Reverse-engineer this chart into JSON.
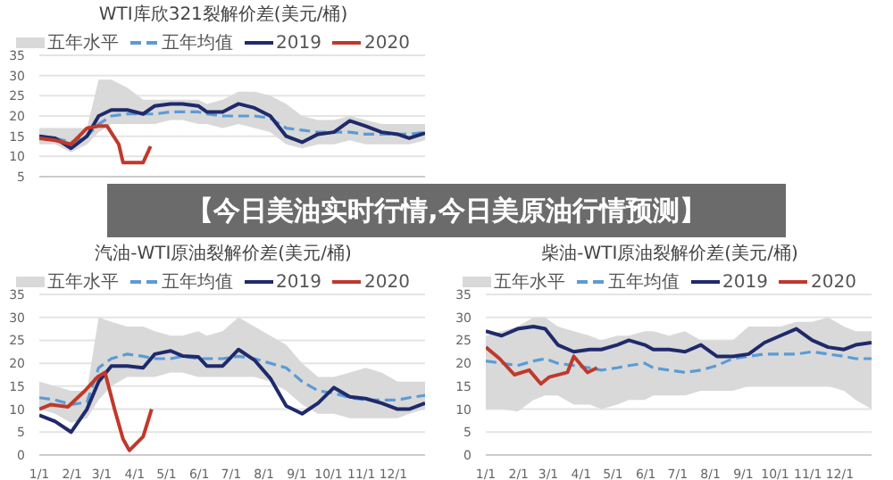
{
  "chart_data": [
    {
      "type": "line",
      "title": "WTI库欣321裂解价差(美元/桶)",
      "subtitle": "【今日美油实时行情,今日美原油行情预测】",
      "annotations": [
        "五年水平"
      ],
      "x": [
        "--01-01",
        "--01-16",
        "--01-31",
        "--02-15",
        "--02-26",
        "--03-10",
        "--03-25",
        "--04-09",
        "--04-20",
        "--05-05",
        "--05-16",
        "--05-31",
        "--06-08",
        "--06-23",
        "--07-08",
        "--07-23",
        "--08-07",
        "--08-22",
        "--09-06",
        "--09-21",
        "--10-06",
        "--10-21",
        "--11-05",
        "--11-20",
        "--12-05",
        "--12-16",
        "--12-31"
      ],
      "xlim": [
        "--01-01",
        "--12-31"
      ],
      "ylim": [
        5,
        35
      ],
      "yticks": [
        5,
        10,
        15,
        20,
        25,
        30,
        35
      ],
      "tick_labels": "y",
      "grid": "y",
      "legend": "top",
      "marker": "none",
      "series": [
        {
          "name": "五年均值",
          "color": "#5b9bd5",
          "line_style": "dashed",
          "lower": [
            13,
            13,
            11,
            13,
            16,
            18,
            18,
            18,
            18,
            19,
            19,
            18,
            18,
            17,
            18,
            17,
            16,
            13,
            12,
            13,
            13,
            14,
            13,
            13,
            13,
            13,
            14
          ],
          "upper": [
            17,
            17,
            17,
            17,
            29,
            29,
            27,
            24,
            24,
            24,
            24,
            24,
            23,
            24,
            26,
            26,
            25,
            23,
            20,
            19,
            19,
            20,
            19,
            18,
            18,
            18,
            18
          ],
          "values": [
            15,
            14.5,
            13.5,
            15,
            18,
            20,
            20.5,
            20.5,
            20.5,
            21,
            21,
            21,
            20.5,
            20,
            20,
            20,
            19.5,
            17,
            16.5,
            16,
            16,
            16,
            15.5,
            15.5,
            15.5,
            15.5,
            16
          ]
        },
        {
          "name": "2019",
          "color": "#1f2a6b",
          "values": [
            15,
            14.5,
            12,
            15,
            20,
            21.5,
            21.5,
            20.5,
            22.5,
            23,
            23,
            22.5,
            21,
            21,
            23,
            22,
            20,
            15,
            13.5,
            15.5,
            16,
            18.8,
            17.5,
            16,
            15.5,
            14.5,
            15.8
          ]
        },
        {
          "name": "2020",
          "color": "#c0392b",
          "x": [
            "--01-01",
            "--01-16",
            "--01-31",
            "--02-15",
            "--02-26",
            "--03-06",
            "--03-17",
            "--03-21",
            "--04-09",
            "--04-16"
          ],
          "values": [
            14.5,
            14,
            13,
            17,
            17.5,
            17.5,
            13,
            8.5,
            8.5,
            12.5
          ]
        }
      ]
    },
    {
      "type": "line",
      "title": "汽油-WTI原油裂解价差(美元/桶)",
      "annotations": [
        "五年水平"
      ],
      "x": [
        "--01-01",
        "--01-16",
        "--01-31",
        "--02-15",
        "--02-26",
        "--03-10",
        "--03-25",
        "--04-09",
        "--04-20",
        "--05-05",
        "--05-16",
        "--05-31",
        "--06-08",
        "--06-23",
        "--07-08",
        "--07-23",
        "--08-07",
        "--08-22",
        "--09-06",
        "--09-21",
        "--10-06",
        "--10-21",
        "--11-05",
        "--11-20",
        "--12-05",
        "--12-16",
        "--12-31"
      ],
      "xlim": [
        "--01-01",
        "--12-31"
      ],
      "xticks": [
        {
          "value": "--01-01",
          "label": "1/1"
        },
        {
          "value": "--02-01",
          "label": "2/1"
        },
        {
          "value": "--03-01",
          "label": "3/1"
        },
        {
          "value": "--04-01",
          "label": "4/1"
        },
        {
          "value": "--05-01",
          "label": "5/1"
        },
        {
          "value": "--06-01",
          "label": "6/1"
        },
        {
          "value": "--07-01",
          "label": "7/1"
        },
        {
          "value": "--08-01",
          "label": "8/1"
        },
        {
          "value": "--09-01",
          "label": "9/1"
        },
        {
          "value": "--10-01",
          "label": "10/1"
        },
        {
          "value": "--11-01",
          "label": "11/1"
        },
        {
          "value": "--12-01",
          "label": "12/1"
        }
      ],
      "ylim": [
        0,
        35
      ],
      "yticks": [
        0,
        5,
        10,
        15,
        20,
        25,
        30,
        35
      ],
      "grid": "y",
      "legend": "top",
      "marker": "none",
      "series": [
        {
          "name": "五年均值",
          "color": "#5b9bd5",
          "line_style": "dashed",
          "lower": [
            10,
            9,
            7,
            8,
            12,
            15,
            17,
            17,
            17,
            18,
            18,
            17,
            17,
            17,
            17,
            17,
            16,
            14,
            11,
            9,
            9,
            8,
            8,
            8,
            8,
            9,
            10
          ],
          "upper": [
            16,
            15,
            14,
            14,
            30,
            29,
            28,
            28,
            27,
            26,
            26,
            27,
            26,
            27,
            30,
            28,
            26,
            24,
            20,
            17,
            17,
            18,
            19,
            18,
            16,
            16,
            16
          ],
          "values": [
            12.5,
            12,
            11,
            11.5,
            19,
            21,
            22,
            21.5,
            21,
            21,
            21.5,
            21,
            21,
            21,
            21.5,
            21,
            20,
            19,
            16,
            14,
            13.5,
            12.5,
            12,
            12,
            12,
            12.5,
            13
          ]
        },
        {
          "name": "2019",
          "color": "#1f2a6b",
          "values": [
            8.7,
            7.3,
            5,
            10,
            16,
            19.4,
            19.4,
            19,
            22,
            22.7,
            21.6,
            21.4,
            19.4,
            19.4,
            23,
            20.7,
            16.7,
            10.7,
            9,
            11.3,
            14.7,
            12.7,
            12.3,
            11.3,
            10,
            10,
            11.3
          ]
        },
        {
          "name": "2020",
          "color": "#c0392b",
          "x": [
            "--01-01",
            "--01-12",
            "--01-28",
            "--02-13",
            "--02-25",
            "--03-04",
            "--03-13",
            "--03-21",
            "--03-27",
            "--04-09",
            "--04-17"
          ],
          "values": [
            10,
            11,
            10.5,
            14,
            17,
            18,
            10,
            3.5,
            1,
            4,
            10
          ]
        }
      ]
    },
    {
      "type": "line",
      "title": "柴油-WTI原油裂解价差(美元/桶)",
      "annotations": [
        "五年水平"
      ],
      "x": [
        "--01-01",
        "--01-16",
        "--01-31",
        "--02-15",
        "--02-26",
        "--03-10",
        "--03-25",
        "--04-09",
        "--04-20",
        "--05-05",
        "--05-16",
        "--05-31",
        "--06-08",
        "--06-23",
        "--07-08",
        "--07-23",
        "--08-07",
        "--08-22",
        "--09-06",
        "--09-21",
        "--10-06",
        "--10-21",
        "--11-05",
        "--11-20",
        "--12-05",
        "--12-16",
        "--12-31"
      ],
      "xlim": [
        "--01-01",
        "--12-31"
      ],
      "xticks": [
        {
          "value": "--01-01",
          "label": "1/1"
        },
        {
          "value": "--02-01",
          "label": "2/1"
        },
        {
          "value": "--03-01",
          "label": "3/1"
        },
        {
          "value": "--04-01",
          "label": "4/1"
        },
        {
          "value": "--05-01",
          "label": "5/1"
        },
        {
          "value": "--06-01",
          "label": "6/1"
        },
        {
          "value": "--07-01",
          "label": "7/1"
        },
        {
          "value": "--08-01",
          "label": "8/1"
        },
        {
          "value": "--09-01",
          "label": "9/1"
        },
        {
          "value": "--10-01",
          "label": "10/1"
        },
        {
          "value": "--11-01",
          "label": "11/1"
        },
        {
          "value": "--12-01",
          "label": "12/1"
        }
      ],
      "ylim": [
        0,
        35
      ],
      "yticks": [
        0,
        5,
        10,
        15,
        20,
        25,
        30,
        35
      ],
      "grid": "y",
      "legend": "top",
      "marker": "none",
      "series": [
        {
          "name": "五年均值",
          "color": "#5b9bd5",
          "line_style": "dashed",
          "lower": [
            10,
            10,
            9.5,
            12,
            13,
            13,
            11,
            11,
            10,
            11,
            12,
            12,
            13,
            13,
            13,
            14,
            14,
            14,
            15,
            15,
            15,
            15,
            15,
            15,
            14,
            12,
            10
          ],
          "upper": [
            26,
            27,
            28,
            30,
            30,
            28,
            27,
            26,
            25,
            26,
            26,
            27,
            27,
            26,
            27,
            25,
            25,
            25,
            28,
            28,
            28,
            29,
            29,
            30,
            28,
            27,
            27
          ],
          "values": [
            20.5,
            20,
            19.5,
            20.5,
            21,
            20,
            19.5,
            19,
            18.5,
            19,
            19.5,
            20,
            19,
            18.5,
            18,
            18.5,
            19.5,
            21,
            21.5,
            22,
            22,
            22,
            22.5,
            22,
            21.5,
            21,
            21
          ]
        },
        {
          "name": "2019",
          "color": "#1f2a6b",
          "values": [
            27,
            26,
            27.5,
            28,
            27.5,
            24,
            22.5,
            23,
            23,
            24,
            25,
            24,
            23,
            23,
            22.5,
            24,
            21.5,
            21.5,
            22,
            24.5,
            26,
            27.5,
            25,
            23.5,
            23,
            24,
            24.5
          ]
        },
        {
          "name": "2020",
          "color": "#c0392b",
          "x": [
            "--01-01",
            "--01-14",
            "--01-28",
            "--02-11",
            "--02-22",
            "--03-02",
            "--03-19",
            "--03-25",
            "--04-07",
            "--04-16"
          ],
          "values": [
            23.5,
            21,
            17.5,
            18.5,
            15.5,
            17,
            18,
            21.5,
            18,
            19
          ]
        }
      ]
    }
  ]
}
